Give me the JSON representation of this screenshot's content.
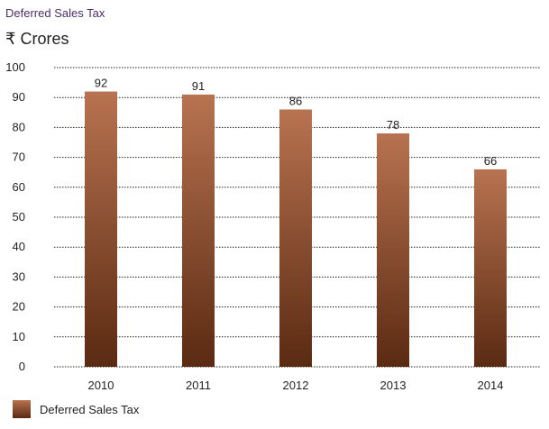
{
  "header": {
    "title": "Deferred Sales Tax",
    "unit": "₹ Crores"
  },
  "chart_data": {
    "type": "bar",
    "categories": [
      "2010",
      "2011",
      "2012",
      "2013",
      "2014"
    ],
    "series": [
      {
        "name": "Deferred Sales Tax",
        "values": [
          92,
          91,
          86,
          78,
          66
        ]
      }
    ],
    "ylim": [
      0,
      100
    ],
    "yticks": [
      0,
      10,
      20,
      30,
      40,
      50,
      60,
      70,
      80,
      90,
      100
    ],
    "grid": true,
    "legend": "bottom-left",
    "colors": {
      "bar_top": "#b87350",
      "bar_bottom": "#5a2a12",
      "grid": "#222222"
    }
  }
}
